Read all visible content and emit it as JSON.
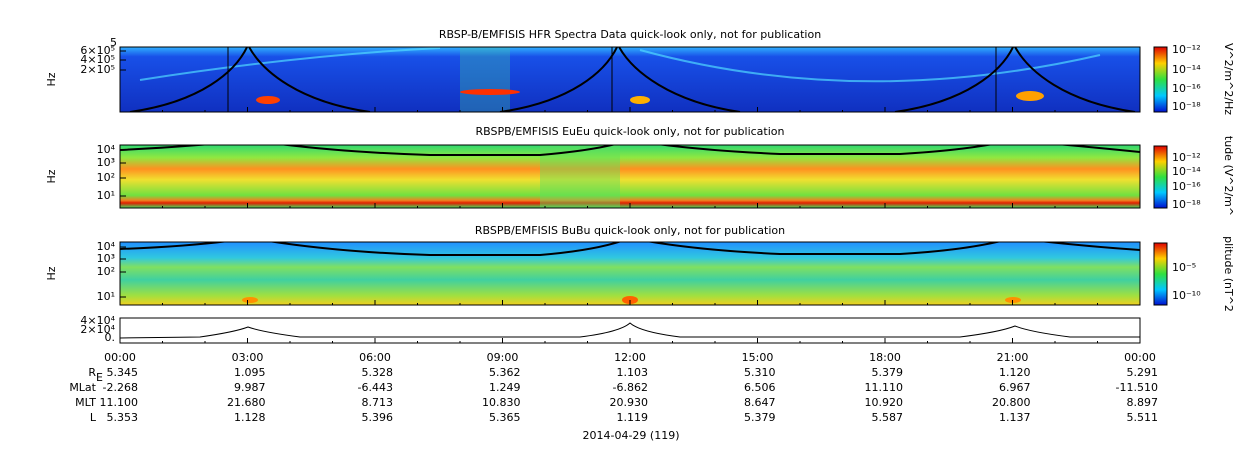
{
  "panels": [
    {
      "title": "RBSP-B/EMFISIS  HFR Spectra Data quick-look only, not for publication",
      "y_label": "Hz",
      "top_label": "5",
      "y_ticks": [
        "6×10⁵",
        "4×10⁵",
        "2×10⁵"
      ],
      "colorbar_label": "V^2/m^2/Hz",
      "colorbar_ticks": [
        "10⁻¹²",
        "10⁻¹⁴",
        "10⁻¹⁶",
        "10⁻¹⁸"
      ]
    },
    {
      "title": "RBSPB/EMFISIS  EuEu quick-look only, not for publication",
      "y_label": "Hz",
      "y_ticks": [
        "10⁴",
        "10³",
        "10²",
        "10¹"
      ],
      "colorbar_label": "tude (V^2/m^",
      "colorbar_ticks": [
        "10⁻¹²",
        "10⁻¹⁴",
        "10⁻¹⁶",
        "10⁻¹⁸"
      ]
    },
    {
      "title": "RBSPB/EMFISIS  BuBu quick-look only, not for publication",
      "y_label": "Hz",
      "y_ticks": [
        "10⁴",
        "10³",
        "10²",
        "10¹"
      ],
      "colorbar_label": "plitude (nT^2",
      "colorbar_ticks": [
        "10⁻⁵",
        "10⁻¹⁰"
      ]
    }
  ],
  "line_panel": {
    "y_ticks": [
      "4×10⁴",
      "2×10⁴",
      "0."
    ]
  },
  "time_ticks": [
    "00:00",
    "03:00",
    "06:00",
    "09:00",
    "12:00",
    "15:00",
    "18:00",
    "21:00",
    "00:00"
  ],
  "ephemeris": {
    "rows": [
      {
        "label": "R",
        "sub": "E",
        "values": [
          "5.345",
          "1.095",
          "5.328",
          "5.362",
          "1.103",
          "5.310",
          "5.379",
          "1.120",
          "5.291"
        ]
      },
      {
        "label": "MLat",
        "values": [
          "-2.268",
          "9.987",
          "-6.443",
          "1.249",
          "-6.862",
          "6.506",
          "11.110",
          "6.967",
          "-11.510"
        ]
      },
      {
        "label": "MLT",
        "values": [
          "11.100",
          "21.680",
          "8.713",
          "10.830",
          "20.930",
          "8.647",
          "10.920",
          "20.800",
          "8.897"
        ]
      },
      {
        "label": "L",
        "values": [
          "5.353",
          "1.128",
          "5.396",
          "5.365",
          "1.119",
          "5.379",
          "5.587",
          "1.137",
          "5.511"
        ]
      }
    ]
  },
  "date_label": "2014-04-29 (119)"
}
